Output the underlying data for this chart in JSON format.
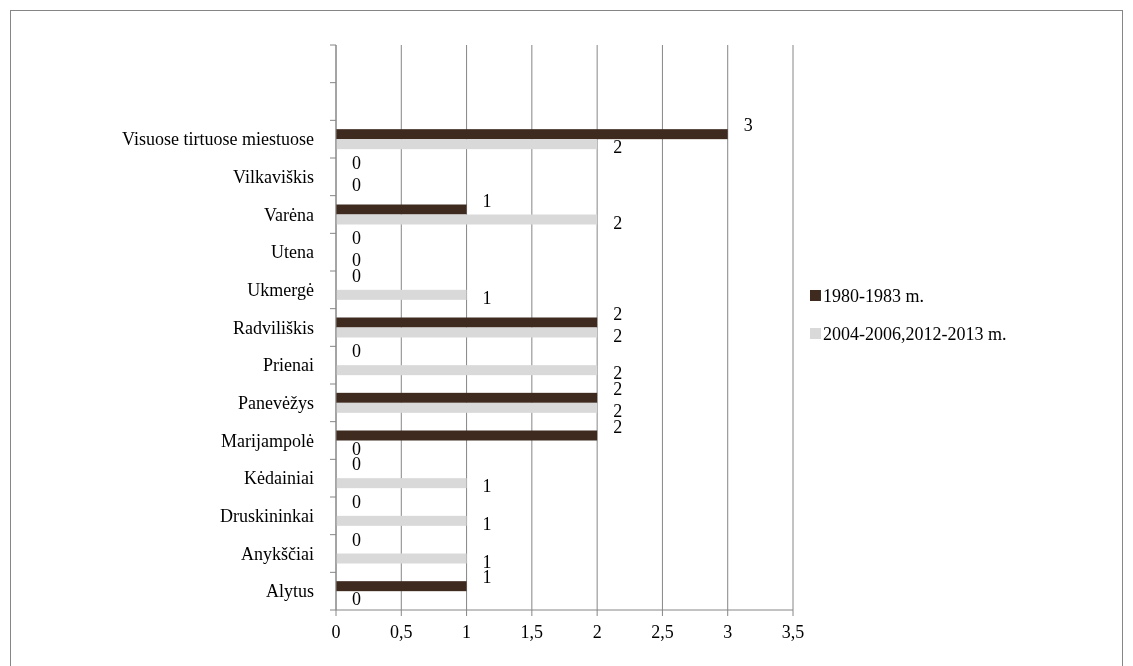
{
  "chart_data": {
    "type": "bar",
    "orientation": "horizontal",
    "categories": [
      null,
      null,
      "Visuose tirtuose miestuose",
      "Vilkaviškis",
      "Varėna",
      "Utena",
      "Ukmergė",
      "Radviliškis",
      "Prienai",
      "Panevėžys",
      "Marijampolė",
      "Kėdainiai",
      "Druskininkai",
      "Anykščiai",
      "Alytus"
    ],
    "series": [
      {
        "name": "1980-1983 m.",
        "color": "#3f2a20",
        "values": [
          null,
          null,
          3,
          0,
          1,
          0,
          0,
          2,
          0,
          2,
          2,
          0,
          0,
          0,
          1
        ]
      },
      {
        "name": "2004-2006,2012-2013 m.",
        "color": "#d9d9d9",
        "values": [
          null,
          null,
          2,
          0,
          2,
          0,
          1,
          2,
          2,
          2,
          0,
          1,
          1,
          1,
          0
        ]
      }
    ],
    "xlim": [
      0,
      3.5
    ],
    "xticks": [
      0,
      {
        "value": 0.5,
        "label": "0,5"
      },
      1,
      {
        "value": 1.5,
        "label": "1,5"
      },
      2,
      {
        "value": 2.5,
        "label": "2,5"
      },
      3,
      {
        "value": 3.5,
        "label": "3,5"
      }
    ],
    "grid": "x",
    "legend": "right",
    "data_labels": true
  }
}
